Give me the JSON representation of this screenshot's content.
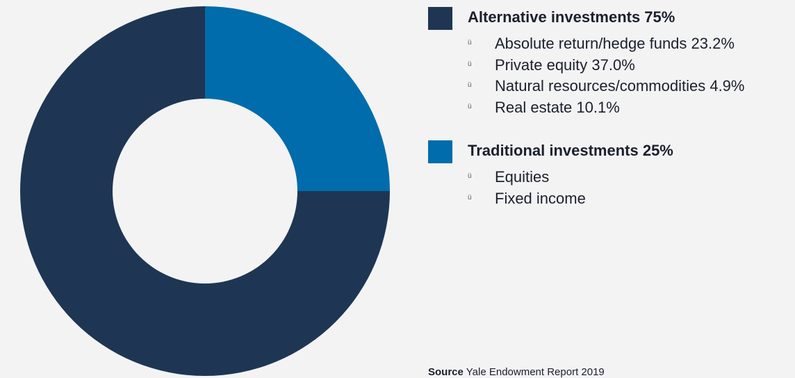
{
  "chart_data": {
    "type": "pie",
    "style": "donut",
    "series": [
      {
        "name": "Alternative investments 75%",
        "value": 75,
        "color": "#1e3653"
      },
      {
        "name": "Traditional investments 25%",
        "value": 25,
        "color": "#006cab"
      }
    ],
    "start": "12 o'clock, clockwise, Traditional first"
  },
  "legend": {
    "groups": [
      {
        "title": "Alternative investments 75%",
        "color": "#1e3653",
        "items": [
          "Absolute return/hedge funds 23.2%",
          "Private equity 37.0%",
          "Natural resources/commodities 4.9%",
          "Real estate 10.1%"
        ]
      },
      {
        "title": "Traditional investments 25%",
        "color": "#006cab",
        "items": [
          "Equities",
          "Fixed income"
        ]
      }
    ],
    "bullet": "ü"
  },
  "source": {
    "label": "Source",
    "text": "Yale Endowment Report 2019"
  },
  "colors": {
    "background": "#f3f3f4",
    "alternative": "#1e3653",
    "traditional": "#006cab"
  }
}
